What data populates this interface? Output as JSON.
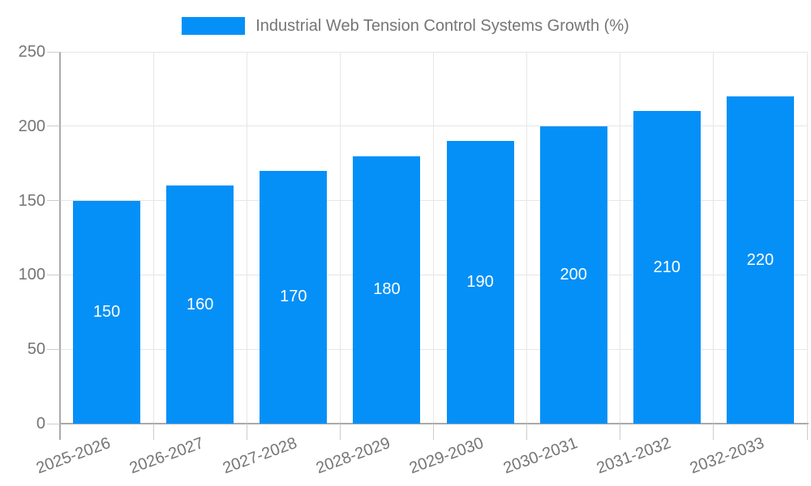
{
  "legend": {
    "label": "Industrial Web Tension Control Systems Growth (%)",
    "position": "top-center"
  },
  "colors": {
    "bar": "#0590f7",
    "grid_line": "#e6e6e6",
    "axis_line": "#aaaaaa",
    "tick_line": "#cccccc",
    "axis_text": "#757575",
    "value_text": "#ffffff",
    "background": "#ffffff"
  },
  "chart_data": {
    "type": "bar",
    "title": "Industrial Web Tension Control Systems Growth (%)",
    "categories": [
      "2025-2026",
      "2026-2027",
      "2027-2028",
      "2028-2029",
      "2029-2030",
      "2030-2031",
      "2031-2032",
      "2032-2033"
    ],
    "values": [
      150,
      160,
      170,
      180,
      190,
      200,
      210,
      220
    ],
    "xlabel": "",
    "ylabel": "",
    "ylim": [
      0,
      250
    ],
    "yticks": [
      0,
      50,
      100,
      150,
      200,
      250
    ],
    "grid": true,
    "legend_position": "top",
    "value_labels": "inside-center",
    "x_label_rotation_deg": -20
  }
}
